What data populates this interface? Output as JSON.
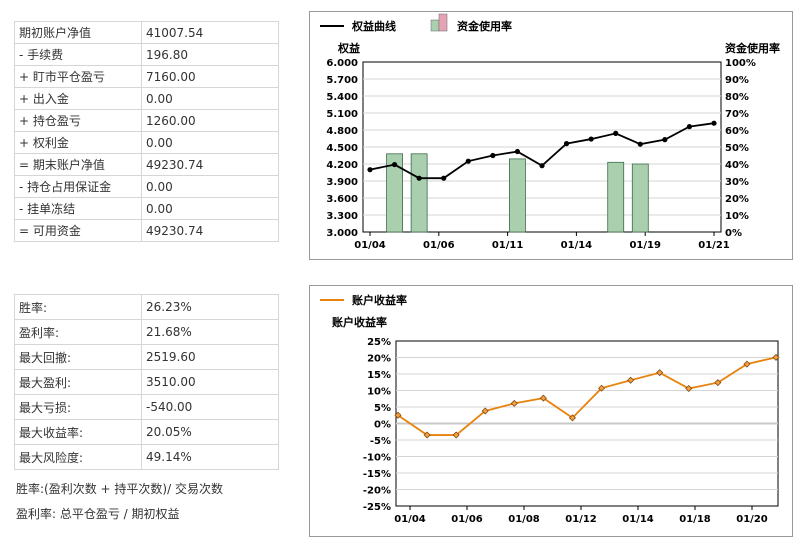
{
  "account_table": [
    {
      "label": "期初账户净值",
      "value": "41007.54"
    },
    {
      "label": "- 手续费",
      "value": "196.80"
    },
    {
      "label": "+ 盯市平仓盈亏",
      "value": "7160.00"
    },
    {
      "label": "+ 出入金",
      "value": "0.00"
    },
    {
      "label": "+ 持仓盈亏",
      "value": "1260.00"
    },
    {
      "label": "+ 权利金",
      "value": "0.00"
    },
    {
      "label": "= 期末账户净值",
      "value": "49230.74"
    },
    {
      "label": "- 持仓占用保证金",
      "value": "0.00"
    },
    {
      "label": "- 挂单冻结",
      "value": "0.00"
    },
    {
      "label": "= 可用资金",
      "value": "49230.74"
    }
  ],
  "performance_table": [
    {
      "label": "胜率:",
      "value": "26.23%"
    },
    {
      "label": "盈利率:",
      "value": "21.68%"
    },
    {
      "label": "最大回撤:",
      "value": "2519.60"
    },
    {
      "label": "最大盈利:",
      "value": "3510.00"
    },
    {
      "label": "最大亏损:",
      "value": "-540.00"
    },
    {
      "label": "最大收益率:",
      "value": "20.05%"
    },
    {
      "label": "最大风险度:",
      "value": "49.14%"
    }
  ],
  "notes": {
    "win_rate": "胜率:(盈利次数 + 持平次数)/ 交易次数",
    "profit_rate": "盈利率: 总平仓盈亏 / 期初权益"
  },
  "colors": {
    "equity_line": "#000000",
    "usage_bar": "#a9cfae",
    "usage_legend_top": "#e6a3b6",
    "return_line": "#e8820c"
  },
  "chart_data": [
    {
      "type": "line+bar",
      "legend": [
        "权益曲线",
        "资金使用率"
      ],
      "ylabel_left": "权益",
      "ylabel_right": "资金使用率",
      "ylim_left": [
        3.0,
        6.0
      ],
      "yticks_left": [
        "6.000",
        "5.700",
        "5.400",
        "5.100",
        "4.800",
        "4.500",
        "4.200",
        "3.900",
        "3.600",
        "3.300",
        "3.000"
      ],
      "ylim_right": [
        0,
        100
      ],
      "yticks_right": [
        "100%",
        "90%",
        "80%",
        "70%",
        "60%",
        "50%",
        "40%",
        "30%",
        "20%",
        "10%",
        "0%"
      ],
      "xticks": [
        "01/04",
        "01/06",
        "01/11",
        "01/14",
        "01/19",
        "01/21"
      ],
      "equity": [
        4.1,
        4.19,
        3.95,
        3.95,
        4.25,
        4.35,
        4.42,
        4.17,
        4.56,
        4.64,
        4.74,
        4.55,
        4.63,
        4.86,
        4.92
      ],
      "usage_bars": [
        {
          "index": 1,
          "value": 46
        },
        {
          "index": 2,
          "value": 46
        },
        {
          "index": 6,
          "value": 43
        },
        {
          "index": 10,
          "value": 41
        },
        {
          "index": 11,
          "value": 40
        }
      ],
      "grid": true,
      "legend_position": "top-left"
    },
    {
      "type": "line",
      "legend": [
        "账户收益率"
      ],
      "ylabel": "账户收益率",
      "ylim": [
        -25,
        25
      ],
      "yticks": [
        "25%",
        "20%",
        "15%",
        "10%",
        "5%",
        "0%",
        "-5%",
        "-10%",
        "-15%",
        "-20%",
        "-25%"
      ],
      "xticks": [
        "01/04",
        "01/06",
        "01/08",
        "01/12",
        "01/14",
        "01/18",
        "01/20"
      ],
      "values": [
        2.5,
        -3.5,
        -3.5,
        3.8,
        6.1,
        7.7,
        1.7,
        10.7,
        13.1,
        15.4,
        10.6,
        12.4,
        18.0,
        20.05
      ],
      "grid": true,
      "legend_position": "top-left"
    }
  ]
}
